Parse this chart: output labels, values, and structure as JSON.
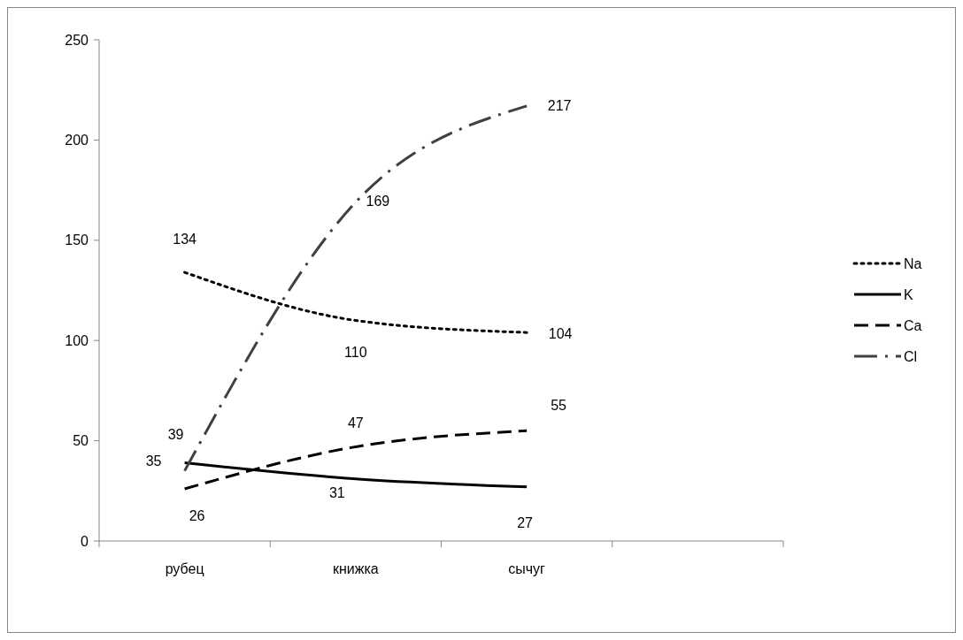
{
  "chart_data": {
    "type": "line",
    "categories": [
      "рубец",
      "книжка",
      "сычуг",
      null
    ],
    "series": [
      {
        "name": "Na",
        "color": "#000000",
        "line_style": "dotted",
        "values": [
          134,
          110,
          104,
          null
        ]
      },
      {
        "name": "K",
        "color": "#000000",
        "line_style": "solid",
        "values": [
          39,
          31,
          27,
          null
        ]
      },
      {
        "name": "Ca",
        "color": "#000000",
        "line_style": "dashed",
        "values": [
          26,
          47,
          55,
          null
        ]
      },
      {
        "name": "Cl",
        "color": "#404040",
        "line_style": "dashdot",
        "values": [
          35,
          169,
          217,
          null
        ]
      }
    ],
    "ylim": [
      0,
      250
    ],
    "yticks": [
      0,
      50,
      100,
      150,
      200,
      250
    ],
    "grid": false,
    "legend": "right",
    "data_labels": true,
    "marker": "none"
  }
}
